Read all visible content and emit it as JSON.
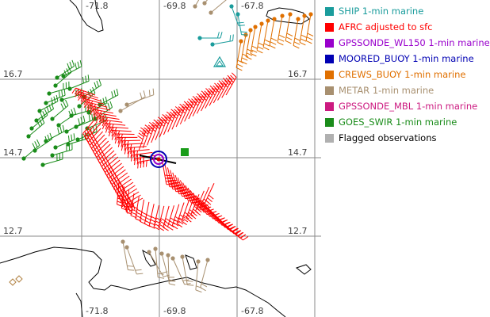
{
  "map": {
    "longitude_labels": [
      "-71.8",
      "-69.8",
      "-67.8"
    ],
    "latitude_labels": [
      "16.7",
      "14.7",
      "12.7"
    ]
  },
  "legend": [
    {
      "label": "SHIP 1-min marine",
      "color": "#1a9c9c"
    },
    {
      "label": "AFRC adjusted to sfc",
      "color": "#ff0000"
    },
    {
      "label": "GPSSONDE_WL150 1-min marine",
      "color": "#9900cc"
    },
    {
      "label": "MOORED_BUOY 1-min marine",
      "color": "#0000b3"
    },
    {
      "label": "CREWS_BUOY 1-min marine",
      "color": "#e07000"
    },
    {
      "label": "METAR 1-min marine",
      "color": "#a89070"
    },
    {
      "label": "GPSSONDE_MBL 1-min marine",
      "color": "#cc1a80"
    },
    {
      "label": "GOES_SWIR 1-min marine",
      "color": "#1a8c1a"
    },
    {
      "label": "Flagged observations",
      "color": "#b0b0b0",
      "label_color": "#000000"
    }
  ]
}
